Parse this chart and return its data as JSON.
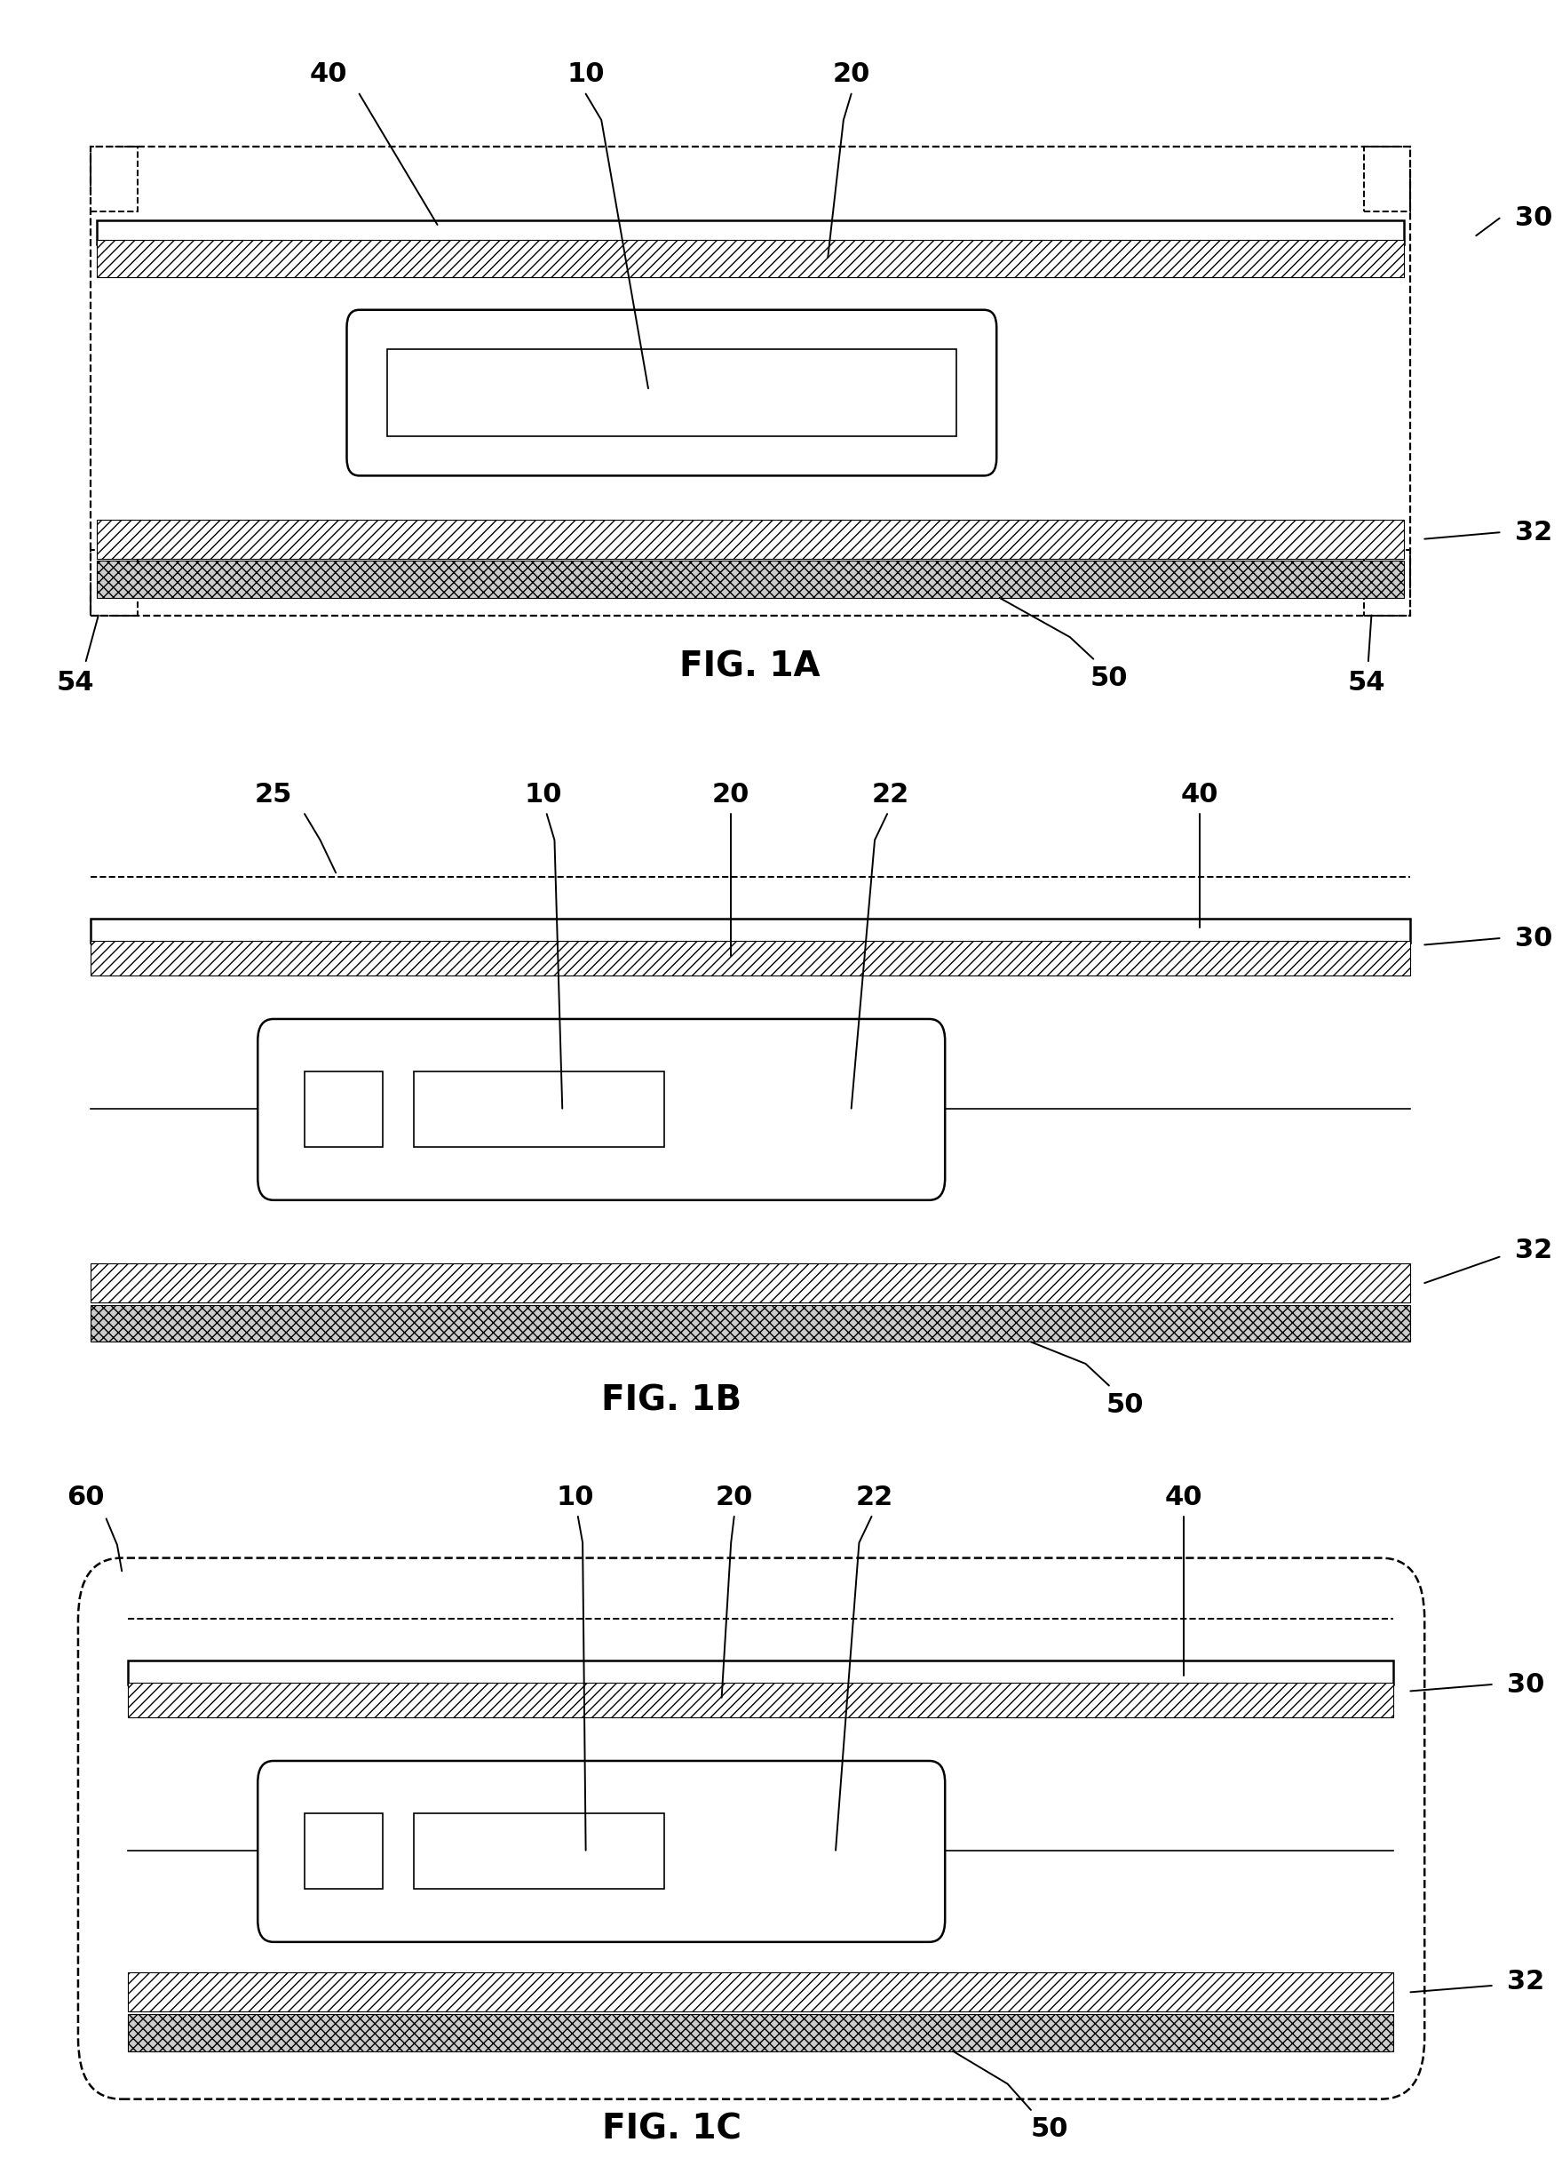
{
  "fig_width": 17.59,
  "fig_height": 24.56,
  "bg_color": "#ffffff",
  "lw": 1.8,
  "lw_thin": 1.2,
  "fs_label": 22,
  "fs_fig": 28,
  "panels": [
    {
      "name": "FIG. 1A",
      "yb": 0.7,
      "yt": 0.97
    },
    {
      "name": "FIG. 1B",
      "yb": 0.365,
      "yt": 0.635
    },
    {
      "name": "FIG. 1C",
      "yb": 0.03,
      "yt": 0.31
    }
  ]
}
